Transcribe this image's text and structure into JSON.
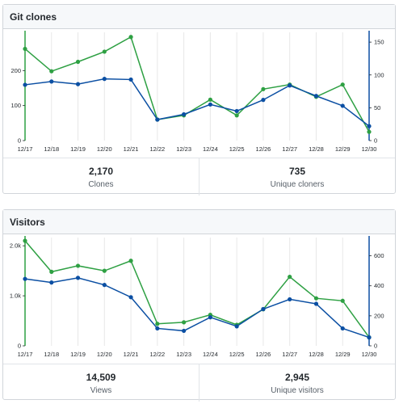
{
  "colors": {
    "green": "#2ea043",
    "blue": "#0b4fa3",
    "grid": "#e8e8e8"
  },
  "clones_panel": {
    "title": "Git clones",
    "count_value": "2,170",
    "count_label": "Clones",
    "unique_value": "735",
    "unique_label": "Unique cloners"
  },
  "visitors_panel": {
    "title": "Visitors",
    "count_value": "14,509",
    "count_label": "Views",
    "unique_value": "2,945",
    "unique_label": "Unique visitors"
  },
  "chart_data": [
    {
      "type": "line",
      "categories": [
        "12/17",
        "12/18",
        "12/19",
        "12/20",
        "12/21",
        "12/22",
        "12/23",
        "12/24",
        "12/25",
        "12/26",
        "12/27",
        "12/28",
        "12/29",
        "12/30"
      ],
      "left_axis": {
        "ticks": [
          "0",
          "100",
          "200"
        ],
        "values": [
          0,
          100,
          200
        ],
        "ylim": [
          0,
          300
        ]
      },
      "right_axis": {
        "ticks": [
          "0",
          "50",
          "100",
          "150"
        ],
        "values": [
          0,
          50,
          100,
          150
        ],
        "ylim": [
          0,
          160
        ]
      },
      "series": [
        {
          "color": "#2ea043",
          "axis": "left",
          "values": [
            262,
            198,
            225,
            254,
            296,
            60,
            72,
            117,
            72,
            147,
            160,
            125,
            160,
            25
          ]
        },
        {
          "color": "#0b4fa3",
          "axis": "right",
          "values": [
            85,
            90,
            86,
            94,
            93,
            32,
            40,
            55,
            45,
            62,
            84,
            68,
            53,
            22
          ]
        }
      ]
    },
    {
      "type": "line",
      "categories": [
        "12/17",
        "12/18",
        "12/19",
        "12/20",
        "12/21",
        "12/22",
        "12/23",
        "12/24",
        "12/25",
        "12/26",
        "12/27",
        "12/28",
        "12/29",
        "12/30"
      ],
      "left_axis": {
        "ticks": [
          "0",
          "1.0k",
          "2.0k"
        ],
        "values": [
          0,
          1000,
          2000
        ],
        "ylim": [
          0,
          2100
        ]
      },
      "right_axis": {
        "ticks": [
          "0",
          "200",
          "400",
          "600"
        ],
        "values": [
          0,
          200,
          400,
          600
        ],
        "ylim": [
          0,
          700
        ]
      },
      "series": [
        {
          "color": "#2ea043",
          "axis": "left",
          "values": [
            2100,
            1480,
            1600,
            1500,
            1700,
            440,
            470,
            620,
            420,
            730,
            1380,
            950,
            900,
            170
          ]
        },
        {
          "color": "#0b4fa3",
          "axis": "right",
          "values": [
            446,
            422,
            453,
            406,
            324,
            116,
            100,
            190,
            130,
            245,
            310,
            280,
            116,
            56
          ]
        }
      ]
    }
  ]
}
